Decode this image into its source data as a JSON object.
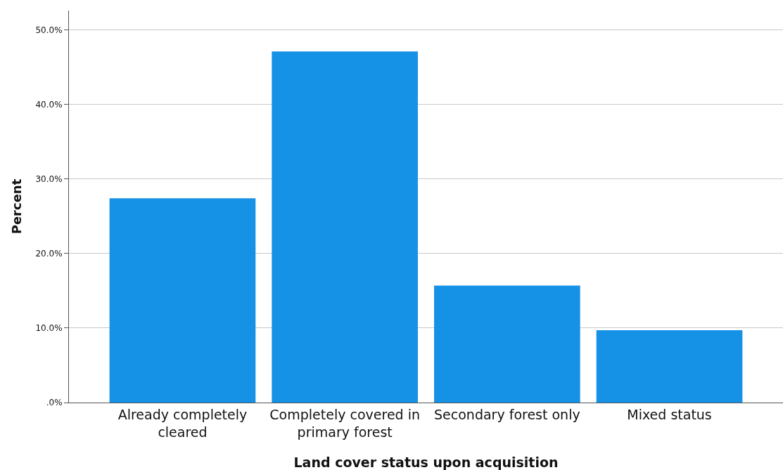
{
  "chart_data": {
    "type": "bar",
    "xlabel": "Land cover status upon acquisition",
    "ylabel": "Percent",
    "categories": [
      "Already completely cleared",
      "Completely covered in primary forest",
      "Secondary forest only",
      "Mixed status"
    ],
    "values": [
      27.4,
      47.1,
      15.7,
      9.7
    ],
    "color": "#1591e6",
    "ylim": [
      0,
      52.6
    ],
    "yticks": [
      {
        "value": 0,
        "label": ".0%"
      },
      {
        "value": 10,
        "label": "10.0%"
      },
      {
        "value": 20,
        "label": "20.0%"
      },
      {
        "value": 30,
        "label": "30.0%"
      },
      {
        "value": 40,
        "label": "40.0%"
      },
      {
        "value": 50,
        "label": "50.0%"
      }
    ],
    "grid": "y",
    "legend": false
  }
}
